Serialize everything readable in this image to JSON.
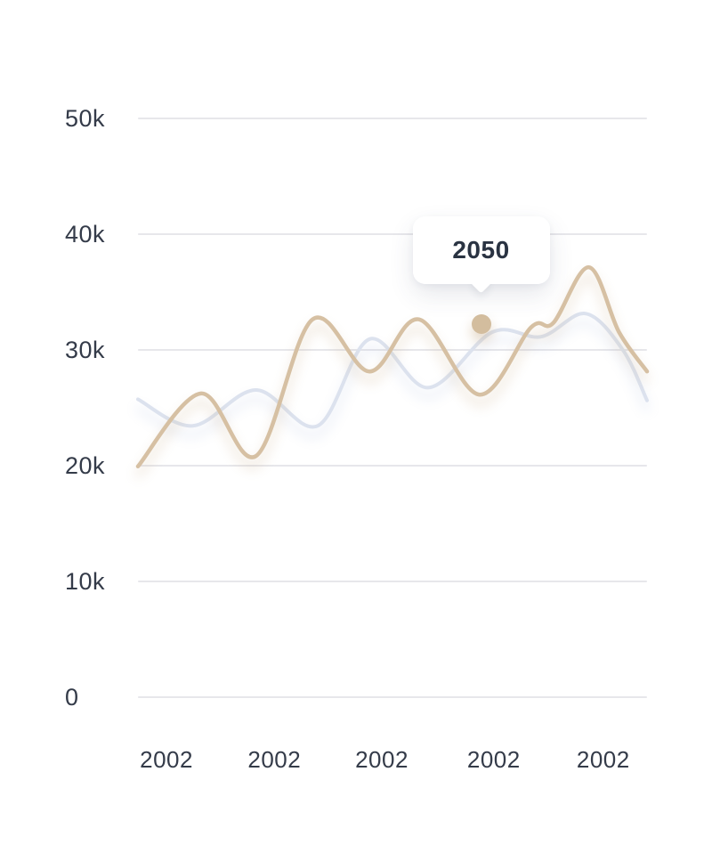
{
  "tooltip": {
    "label": "2050"
  },
  "colors": {
    "primary_line": "#d6c0a3",
    "secondary_line": "#dce2ee",
    "marker": "#d3bd9e",
    "grid": "#e7e7eb",
    "axis_label": "#343b49",
    "tooltip_text": "#2a3342",
    "background": "#ffffff"
  },
  "chart_data": {
    "type": "line",
    "title": "",
    "xlabel": "",
    "ylabel": "",
    "ylim": [
      0,
      50
    ],
    "grid": "horizontal",
    "legend": "none",
    "y_ticks": [
      {
        "label": "50k",
        "value": 50
      },
      {
        "label": "40k",
        "value": 40
      },
      {
        "label": "30k",
        "value": 30
      },
      {
        "label": "20k",
        "value": 20
      },
      {
        "label": "10k",
        "value": 10
      },
      {
        "label": "0",
        "value": 0
      }
    ],
    "x_ticks": [
      "2002",
      "2002",
      "2002",
      "2002",
      "2002"
    ],
    "unit": "thousands",
    "series": [
      {
        "name": "secondary",
        "color": "#dce2ee",
        "stroke_width": 4,
        "shadow": "rgba(170,185,220,0.40)",
        "points": [
          {
            "x": 0.0,
            "y": 25.7
          },
          {
            "x": 0.108,
            "y": 23.4
          },
          {
            "x": 0.232,
            "y": 26.5
          },
          {
            "x": 0.353,
            "y": 23.4
          },
          {
            "x": 0.455,
            "y": 30.9
          },
          {
            "x": 0.57,
            "y": 26.7
          },
          {
            "x": 0.696,
            "y": 31.5
          },
          {
            "x": 0.792,
            "y": 31.1
          },
          {
            "x": 0.879,
            "y": 33.1
          },
          {
            "x": 0.952,
            "y": 30.0
          },
          {
            "x": 1.0,
            "y": 25.6
          }
        ]
      },
      {
        "name": "primary",
        "color": "#d6c0a3",
        "stroke_width": 4.5,
        "shadow": "rgba(196,165,125,0.42)",
        "points": [
          {
            "x": 0.0,
            "y": 19.9
          },
          {
            "x": 0.124,
            "y": 26.2
          },
          {
            "x": 0.232,
            "y": 20.8
          },
          {
            "x": 0.343,
            "y": 32.6
          },
          {
            "x": 0.455,
            "y": 28.1
          },
          {
            "x": 0.552,
            "y": 32.6
          },
          {
            "x": 0.671,
            "y": 26.1
          },
          {
            "x": 0.772,
            "y": 31.9
          },
          {
            "x": 0.816,
            "y": 32.3
          },
          {
            "x": 0.886,
            "y": 37.1
          },
          {
            "x": 0.945,
            "y": 31.5
          },
          {
            "x": 1.0,
            "y": 28.1
          }
        ]
      }
    ],
    "marker": {
      "series": "primary",
      "x": 0.674,
      "y": 32.2,
      "label": "2050"
    }
  }
}
